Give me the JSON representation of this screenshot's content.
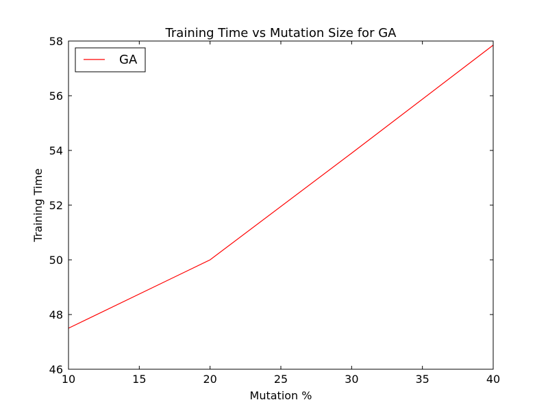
{
  "chart_data": {
    "type": "line",
    "title": "Training Time vs Mutation Size for GA",
    "xlabel": "Mutation %",
    "ylabel": "Training Time",
    "xlim": [
      10,
      40
    ],
    "ylim": [
      46,
      58
    ],
    "xticks": [
      10,
      15,
      20,
      25,
      30,
      35,
      40
    ],
    "yticks": [
      46,
      48,
      50,
      52,
      54,
      56,
      58
    ],
    "grid": false,
    "legend_position": "top-left",
    "series": [
      {
        "name": "GA",
        "color": "#ff0000",
        "x": [
          10,
          20,
          30,
          40
        ],
        "y": [
          47.5,
          50.0,
          53.9,
          57.85
        ]
      }
    ]
  }
}
